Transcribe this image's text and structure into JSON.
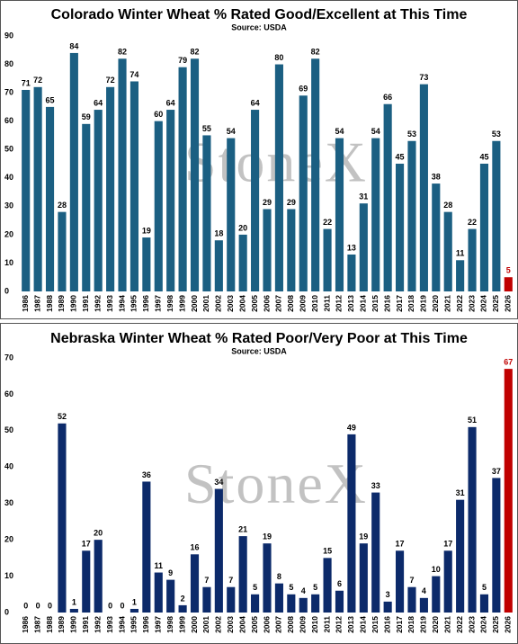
{
  "chart_data": [
    {
      "type": "bar",
      "title": "Colorado Winter Wheat % Rated Good/Excellent at This Time",
      "subtitle": "Source: USDA",
      "watermark": "StoneX",
      "categories": [
        "1986",
        "1987",
        "1988",
        "1989",
        "1990",
        "1991",
        "1992",
        "1993",
        "1994",
        "1995",
        "1996",
        "1997",
        "1998",
        "1999",
        "2000",
        "2001",
        "2002",
        "2003",
        "2004",
        "2005",
        "2006",
        "2007",
        "2008",
        "2009",
        "2010",
        "2011",
        "2012",
        "2013",
        "2014",
        "2015",
        "2016",
        "2017",
        "2018",
        "2019",
        "2020",
        "2021",
        "2022",
        "2023",
        "2024",
        "2025",
        "2026"
      ],
      "values": [
        71,
        72,
        65,
        28,
        84,
        59,
        64,
        72,
        82,
        74,
        19,
        60,
        64,
        79,
        82,
        55,
        18,
        54,
        20,
        64,
        29,
        80,
        29,
        69,
        82,
        22,
        54,
        13,
        31,
        54,
        66,
        45,
        53,
        73,
        38,
        28,
        11,
        22,
        45,
        53,
        5
      ],
      "color": "#1b5f82",
      "colors": [
        "#1b5f82",
        "#1b5f82",
        "#1b5f82",
        "#1b5f82",
        "#1b5f82",
        "#1b5f82",
        "#1b5f82",
        "#1b5f82",
        "#1b5f82",
        "#1b5f82",
        "#1b5f82",
        "#1b5f82",
        "#1b5f82",
        "#1b5f82",
        "#1b5f82",
        "#1b5f82",
        "#1b5f82",
        "#1b5f82",
        "#1b5f82",
        "#1b5f82",
        "#1b5f82",
        "#1b5f82",
        "#1b5f82",
        "#1b5f82",
        "#1b5f82",
        "#1b5f82",
        "#1b5f82",
        "#1b5f82",
        "#1b5f82",
        "#1b5f82",
        "#1b5f82",
        "#1b5f82",
        "#1b5f82",
        "#1b5f82",
        "#1b5f82",
        "#1b5f82",
        "#1b5f82",
        "#1b5f82",
        "#1b5f82",
        "#1b5f82",
        "#c00000"
      ],
      "ylim": [
        0,
        90
      ],
      "yticks": [
        0,
        10,
        20,
        30,
        40,
        50,
        60,
        70,
        80,
        90
      ],
      "grid": false
    },
    {
      "type": "bar",
      "title": "Nebraska Winter Wheat % Rated Poor/Very Poor at This Time",
      "subtitle": "Source: USDA",
      "watermark": "StoneX",
      "categories": [
        "1986",
        "1987",
        "1988",
        "1989",
        "1990",
        "1991",
        "1992",
        "1993",
        "1994",
        "1995",
        "1996",
        "1997",
        "1998",
        "1999",
        "2000",
        "2001",
        "2002",
        "2003",
        "2004",
        "2005",
        "2006",
        "2007",
        "2008",
        "2009",
        "2010",
        "2011",
        "2012",
        "2013",
        "2014",
        "2015",
        "2016",
        "2017",
        "2018",
        "2019",
        "2020",
        "2021",
        "2022",
        "2023",
        "2024",
        "2025",
        "2026"
      ],
      "values": [
        0,
        0,
        0,
        52,
        1,
        17,
        20,
        0,
        0,
        1,
        36,
        11,
        9,
        2,
        16,
        7,
        34,
        7,
        21,
        5,
        19,
        8,
        5,
        4,
        5,
        15,
        6,
        49,
        19,
        33,
        3,
        17,
        7,
        4,
        10,
        17,
        31,
        51,
        5,
        37,
        67
      ],
      "color": "#0c2a6a",
      "colors": [
        "#0c2a6a",
        "#0c2a6a",
        "#0c2a6a",
        "#0c2a6a",
        "#0c2a6a",
        "#0c2a6a",
        "#0c2a6a",
        "#0c2a6a",
        "#0c2a6a",
        "#0c2a6a",
        "#0c2a6a",
        "#0c2a6a",
        "#0c2a6a",
        "#0c2a6a",
        "#0c2a6a",
        "#0c2a6a",
        "#0c2a6a",
        "#0c2a6a",
        "#0c2a6a",
        "#0c2a6a",
        "#0c2a6a",
        "#0c2a6a",
        "#0c2a6a",
        "#0c2a6a",
        "#0c2a6a",
        "#0c2a6a",
        "#0c2a6a",
        "#0c2a6a",
        "#0c2a6a",
        "#0c2a6a",
        "#0c2a6a",
        "#0c2a6a",
        "#0c2a6a",
        "#0c2a6a",
        "#0c2a6a",
        "#0c2a6a",
        "#0c2a6a",
        "#0c2a6a",
        "#0c2a6a",
        "#0c2a6a",
        "#c00000"
      ],
      "ylim": [
        0,
        70
      ],
      "yticks": [
        0,
        10,
        20,
        30,
        40,
        50,
        60,
        70
      ],
      "grid": false
    }
  ]
}
